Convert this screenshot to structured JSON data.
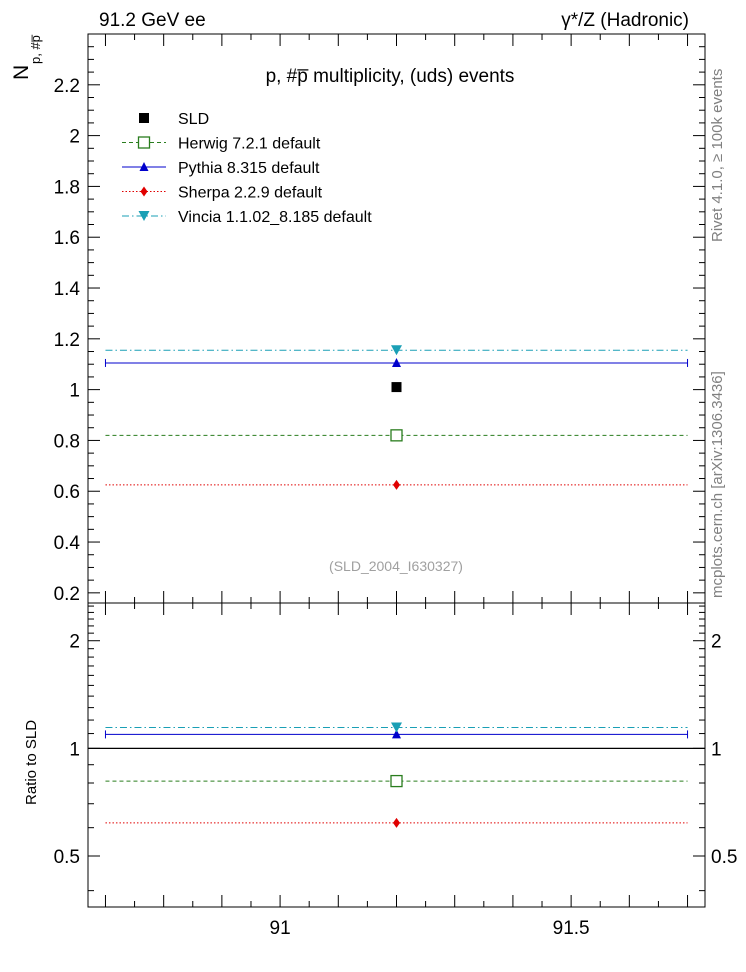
{
  "header": {
    "left": "91.2 GeV ee",
    "right": "γ*/Z (Hadronic)"
  },
  "side_labels": {
    "rivet": "Rivet 4.1.0, ≥ 100k events",
    "mcplots": "mcplots.cern.ch [arXiv:1306.3436]"
  },
  "chart_data": {
    "type": "scatter",
    "title": "p, #p̅ multiplicity, (uds) events",
    "ylabel": "N",
    "ylabel_sub": "p, #p̅",
    "ratio_ylabel": "Ratio to SLD",
    "analysis_tag": "(SLD_2004_I630327)",
    "xlim": [
      90.67,
      91.73
    ],
    "ylim": [
      0.16,
      2.4
    ],
    "ratio_ylim": [
      0.36,
      2.55
    ],
    "xticks": [
      91.0,
      91.5
    ],
    "xtick_labels": [
      "91",
      "91.5"
    ],
    "yticks": [
      0.2,
      0.4,
      0.6,
      0.8,
      1.0,
      1.2,
      1.4,
      1.6,
      1.8,
      2.0,
      2.2
    ],
    "ytick_labels": [
      "0.2",
      "0.4",
      "0.6",
      "0.8",
      "1",
      "1.2",
      "1.4",
      "1.6",
      "1.8",
      "2",
      "2.2"
    ],
    "ratio_yticks": [
      0.5,
      1.0,
      2.0
    ],
    "ratio_ytick_labels": [
      "0.5",
      "1",
      "2"
    ],
    "x_point": 91.2,
    "x_range": [
      90.7,
      91.7
    ],
    "series": [
      {
        "name": "SLD",
        "value": 1.01,
        "ratio": 1.0,
        "color": "#000000",
        "marker": "square-filled",
        "line": "none",
        "is_reference": true
      },
      {
        "name": "Herwig 7.2.1 default",
        "value": 0.82,
        "ratio": 0.81,
        "color": "#2a7d1e",
        "marker": "square-open",
        "line": "dashed"
      },
      {
        "name": "Pythia 8.315 default",
        "value": 1.105,
        "ratio": 1.094,
        "color": "#0000cc",
        "marker": "triangle-up",
        "line": "solid"
      },
      {
        "name": "Sherpa 2.2.9 default",
        "value": 0.625,
        "ratio": 0.619,
        "color": "#e00000",
        "marker": "diamond",
        "line": "dotted"
      },
      {
        "name": "Vincia 1.1.02_8.185 default",
        "value": 1.155,
        "ratio": 1.144,
        "color": "#1a9fb5",
        "marker": "triangle-down",
        "line": "dashdot"
      }
    ]
  }
}
